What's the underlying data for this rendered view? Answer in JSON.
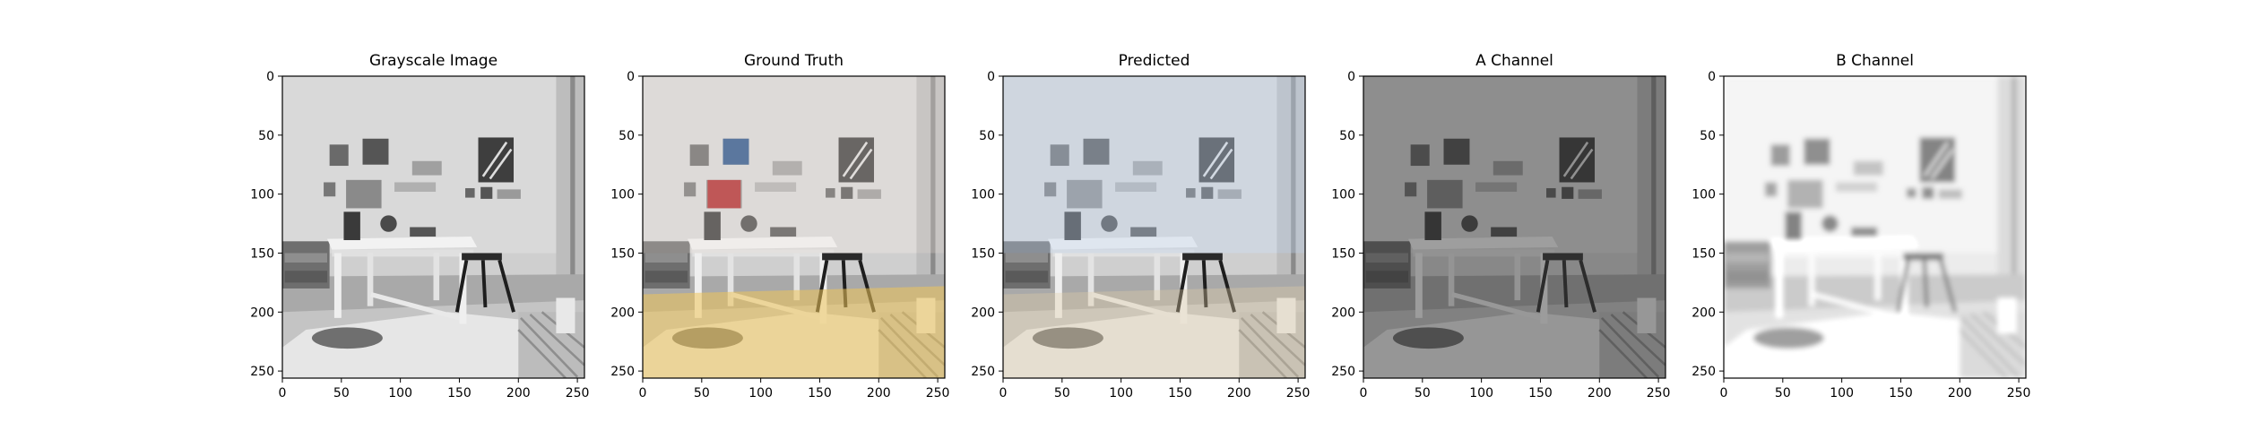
{
  "panels": [
    {
      "title": "Grayscale Image",
      "mode": "gray"
    },
    {
      "title": "Ground Truth",
      "mode": "color"
    },
    {
      "title": "Predicted",
      "mode": "pred"
    },
    {
      "title": "A Channel",
      "mode": "a"
    },
    {
      "title": "B Channel",
      "mode": "b"
    }
  ],
  "axes": {
    "x_ticks": [
      "0",
      "50",
      "100",
      "150",
      "200",
      "250"
    ],
    "y_ticks": [
      "0",
      "50",
      "100",
      "150",
      "200",
      "250"
    ],
    "xlim": [
      0,
      256
    ],
    "ylim": [
      256,
      0
    ]
  },
  "colors": {
    "frame": "#000000",
    "background": "#ffffff"
  }
}
